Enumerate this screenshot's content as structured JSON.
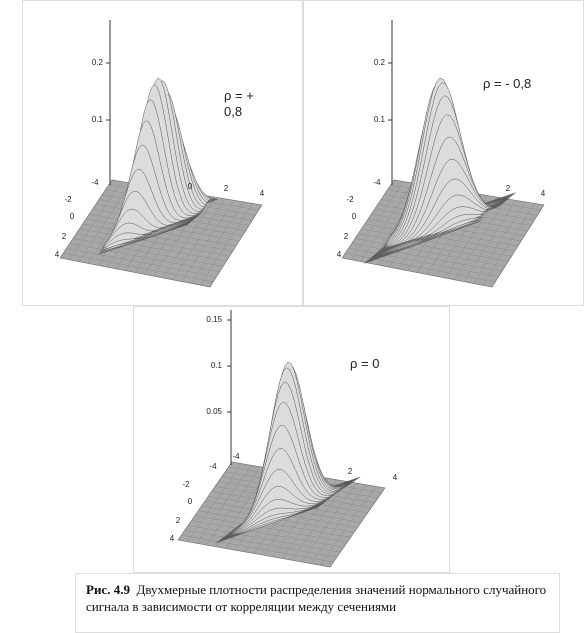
{
  "panels": [
    {
      "label": "ρ = + 0,8",
      "z_ticks": [
        "0.2",
        "0.1"
      ],
      "x_ticks": [
        "-4",
        "0",
        "2",
        "4"
      ],
      "y_ticks": [
        "-2",
        "0",
        "2",
        "4"
      ]
    },
    {
      "label": "ρ = - 0,8",
      "z_ticks": [
        "0.2",
        "0.1"
      ],
      "x_ticks": [
        "-4",
        "2",
        "4"
      ],
      "y_ticks": [
        "-2",
        "0",
        "2",
        "4"
      ]
    },
    {
      "label": "ρ = 0",
      "z_ticks": [
        "0.15",
        "0.1",
        "0.05"
      ],
      "x_ticks": [
        "-4",
        "-4",
        "2",
        "4"
      ],
      "y_ticks": [
        "-2",
        "0",
        "2",
        "4"
      ]
    }
  ],
  "caption": {
    "figure": "Рис. 4.9",
    "text": "Двухмерные плотности распределения значений нормального случайного сигнала в зависимости от корреляции между сечениями"
  }
}
